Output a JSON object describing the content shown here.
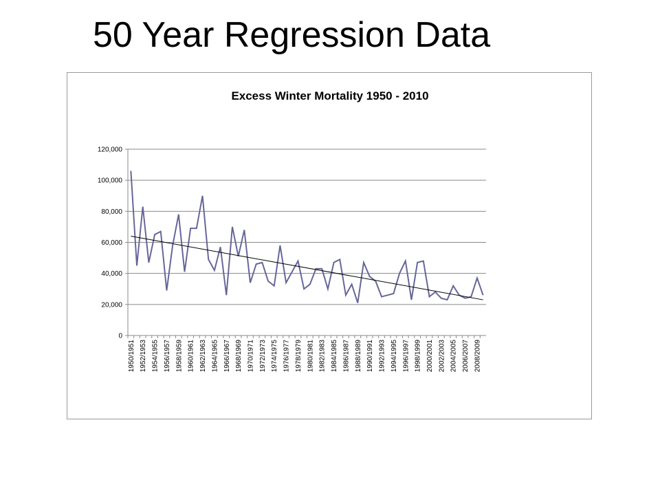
{
  "slide_title": "50 Year Regression Data",
  "chart_data": {
    "type": "line",
    "title": "Excess Winter Mortality 1950 - 2010",
    "categories": [
      "1950/1951",
      null,
      "1952/1953",
      null,
      "1954/1955",
      null,
      "1956/1957",
      null,
      "1958/1959",
      null,
      "1960/1961",
      null,
      "1962/1963",
      null,
      "1964/1965",
      null,
      "1966/1967",
      null,
      "1968/1969",
      null,
      "1970/1971",
      null,
      "1972/1973",
      null,
      "1974/1975",
      null,
      "1976/1977",
      null,
      "1978/1979",
      null,
      "1980/1981",
      null,
      "1982/1983",
      null,
      "1984/1985",
      null,
      "1986/1987",
      null,
      "1988/1989",
      null,
      "1990/1991",
      null,
      "1992/1993",
      null,
      "1994/1995",
      null,
      "1996/1997",
      null,
      "1998/1999",
      null,
      "2000/2001",
      null,
      "2002/2003",
      null,
      "2004/2005",
      null,
      "2006/2007",
      null,
      "2008/2009",
      null
    ],
    "series": [
      {
        "color": "#666699",
        "values": [
          106000,
          45000,
          83000,
          47000,
          65000,
          67000,
          29000,
          58000,
          78000,
          41000,
          69000,
          69000,
          90000,
          49000,
          42000,
          57000,
          26000,
          70000,
          51000,
          68000,
          34000,
          46000,
          47000,
          35000,
          32000,
          58000,
          34000,
          41000,
          48000,
          30000,
          33000,
          43000,
          43000,
          30000,
          47000,
          49000,
          26000,
          33000,
          21000,
          47000,
          38000,
          35000,
          25000,
          26000,
          27000,
          40000,
          48000,
          23000,
          47000,
          48000,
          25000,
          28000,
          24000,
          23000,
          32000,
          26000,
          24000,
          25000,
          37000,
          26000
        ]
      }
    ],
    "trendline": {
      "color": "#000000",
      "values": [
        64000,
        23000
      ]
    },
    "ylim": [
      0,
      120000
    ],
    "yticks": [
      0,
      {
        "value": 20000,
        "label": "20,000"
      },
      {
        "value": 40000,
        "label": "40,000"
      },
      {
        "value": 60000,
        "label": "60,000"
      },
      {
        "value": 80000,
        "label": "80,000"
      },
      {
        "value": 100000,
        "label": "100,000"
      },
      {
        "value": 120000,
        "label": "120,000"
      }
    ],
    "grid": true
  }
}
